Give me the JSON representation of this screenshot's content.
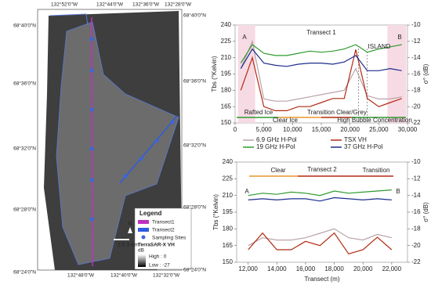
{
  "map": {
    "top_labels": [
      "132°52'0\"W",
      "132°44'0\"W",
      "132°36'0\"W",
      "132°28'0\"W"
    ],
    "bottom_labels": [
      "132°48'0\"W",
      "132°40'0\"W",
      "132°32'0\"W"
    ],
    "left_labels": [
      "68°40'0\"N",
      "68°36'0\"N",
      "68°32'0\"N",
      "68°28'0\"N",
      "68°24'0\"N"
    ],
    "right_labels": [
      "68°40'0\"N",
      "68°36'0\"N",
      "68°32'0\"N",
      "68°28'0\"N",
      "68°24'0\"N"
    ],
    "legend": {
      "title": "Legend",
      "items": [
        "Transect1",
        "Transect2",
        "Sampling Sites"
      ],
      "layer": "TerraSAR-X VH",
      "unit": "dB",
      "high": "High : 0",
      "low": "Low : -27"
    },
    "scale": [
      "2.5",
      "5 Km"
    ],
    "north": "N"
  },
  "chart_data": [
    {
      "type": "line",
      "title": "Transect 1",
      "ylabel": "Tbs (°Kelvin)",
      "y2label": "σ° (dB)",
      "x": [
        1000,
        3000,
        5000,
        7000,
        9000,
        11000,
        13000,
        15000,
        17000,
        19000,
        21000,
        23000,
        25000,
        27000,
        29000
      ],
      "xlim": [
        0,
        30000
      ],
      "xticks": [
        0,
        {
          "value": 5000,
          "label": "5,000"
        },
        {
          "value": 10000,
          "label": "10,000"
        },
        {
          "value": 15000,
          "label": "15,000"
        },
        {
          "value": 20000,
          "label": "20,000"
        },
        {
          "value": 25000,
          "label": "25,000"
        },
        {
          "value": 30000,
          "label": "30,000"
        }
      ],
      "ylim": [
        150,
        240
      ],
      "yticks": [
        150,
        165,
        180,
        195,
        210,
        225,
        240
      ],
      "y2lim": [
        -22,
        -10
      ],
      "y2ticks": [
        -22,
        -20,
        -18,
        -16,
        -14,
        -12,
        -10
      ],
      "series": [
        {
          "name": "6.9 GHz H-Pol",
          "color": "#b9a3aa",
          "values": [
            200,
            225,
            172,
            170,
            170,
            172,
            174,
            176,
            178,
            180,
            200,
            175,
            172,
            172,
            174
          ]
        },
        {
          "name": "TSX VH",
          "color": "#b22a12",
          "axis": "y2",
          "values": [
            -18,
            -14,
            -20,
            -20.5,
            -20.5,
            -20,
            -20,
            -19.5,
            -19,
            -19,
            -13,
            -19,
            -20,
            -19.5,
            -19
          ]
        },
        {
          "name": "19 GHz H-Pol",
          "color": "#2e9a2e",
          "values": [
            205,
            222,
            214,
            212,
            212,
            214,
            216,
            215,
            216,
            218,
            222,
            215,
            218,
            220,
            222
          ]
        },
        {
          "name": "37 GHz H-Pol",
          "color": "#1c2d8c",
          "values": [
            200,
            218,
            205,
            203,
            202,
            204,
            205,
            205,
            204,
            206,
            212,
            198,
            198,
            200,
            198
          ]
        }
      ],
      "annotations": [
        {
          "text": "A",
          "color": "#d9302a"
        },
        {
          "text": "B",
          "color": "#d9302a"
        },
        {
          "text": "ISLAND",
          "color": "#222222"
        },
        {
          "text": "Rafted Ice",
          "color": "#2e9a2e"
        },
        {
          "text": "Clear Ice",
          "color": "#e8962a"
        },
        {
          "text": "Transition Clear/Grey",
          "color": "#b22a12"
        },
        {
          "text": "High Bubble Concentration",
          "color": "#2e9a2e"
        }
      ]
    },
    {
      "type": "line",
      "title": "Transect 2",
      "ylabel": "Tbs (°Kelvin)",
      "y2label": "σ° (dB)",
      "xlabel": "Transect (m)",
      "x": [
        12000,
        13000,
        14000,
        15000,
        16000,
        17000,
        18000,
        19000,
        20000,
        21000,
        22000
      ],
      "xlim": [
        11200,
        23100
      ],
      "xticks": [
        {
          "value": 12000,
          "label": "12,000"
        },
        {
          "value": 14000,
          "label": "14,000"
        },
        {
          "value": 16000,
          "label": "16,000"
        },
        {
          "value": 18000,
          "label": "18,000"
        },
        {
          "value": 20000,
          "label": "20,000"
        },
        {
          "value": 22000,
          "label": "22,000"
        }
      ],
      "ylim": [
        150,
        240
      ],
      "yticks": [
        150,
        165,
        180,
        195,
        210,
        225,
        240
      ],
      "y2lim": [
        -22,
        -10
      ],
      "y2ticks": [
        -22,
        -20,
        -18,
        -16,
        -14,
        -12,
        -10
      ],
      "series": [
        {
          "name": "6.9 GHz H-Pol",
          "color": "#b9a3aa",
          "values": [
            165,
            172,
            170,
            170,
            172,
            176,
            180,
            172,
            170,
            175,
            172
          ]
        },
        {
          "name": "TSX VH",
          "color": "#b22a12",
          "axis": "y2",
          "values": [
            -20.5,
            -18.5,
            -20.5,
            -20.5,
            -19.5,
            -20,
            -18.5,
            -21,
            -20.5,
            -19,
            -20.5
          ]
        },
        {
          "name": "19 GHz H-Pol",
          "color": "#2e9a2e",
          "values": [
            210,
            212,
            211,
            213,
            212,
            210,
            214,
            212,
            213,
            214,
            215
          ]
        },
        {
          "name": "37 GHz H-Pol",
          "color": "#1c2d8c",
          "values": [
            206,
            207,
            206,
            207,
            207,
            205,
            208,
            207,
            206,
            207,
            206
          ]
        }
      ],
      "annotations": [
        {
          "text": "A",
          "color": "#d9302a"
        },
        {
          "text": "B",
          "color": "#d9302a"
        },
        {
          "text": "Clear",
          "color": "#e8962a"
        },
        {
          "text": "Transition",
          "color": "#b22a12"
        }
      ]
    }
  ]
}
